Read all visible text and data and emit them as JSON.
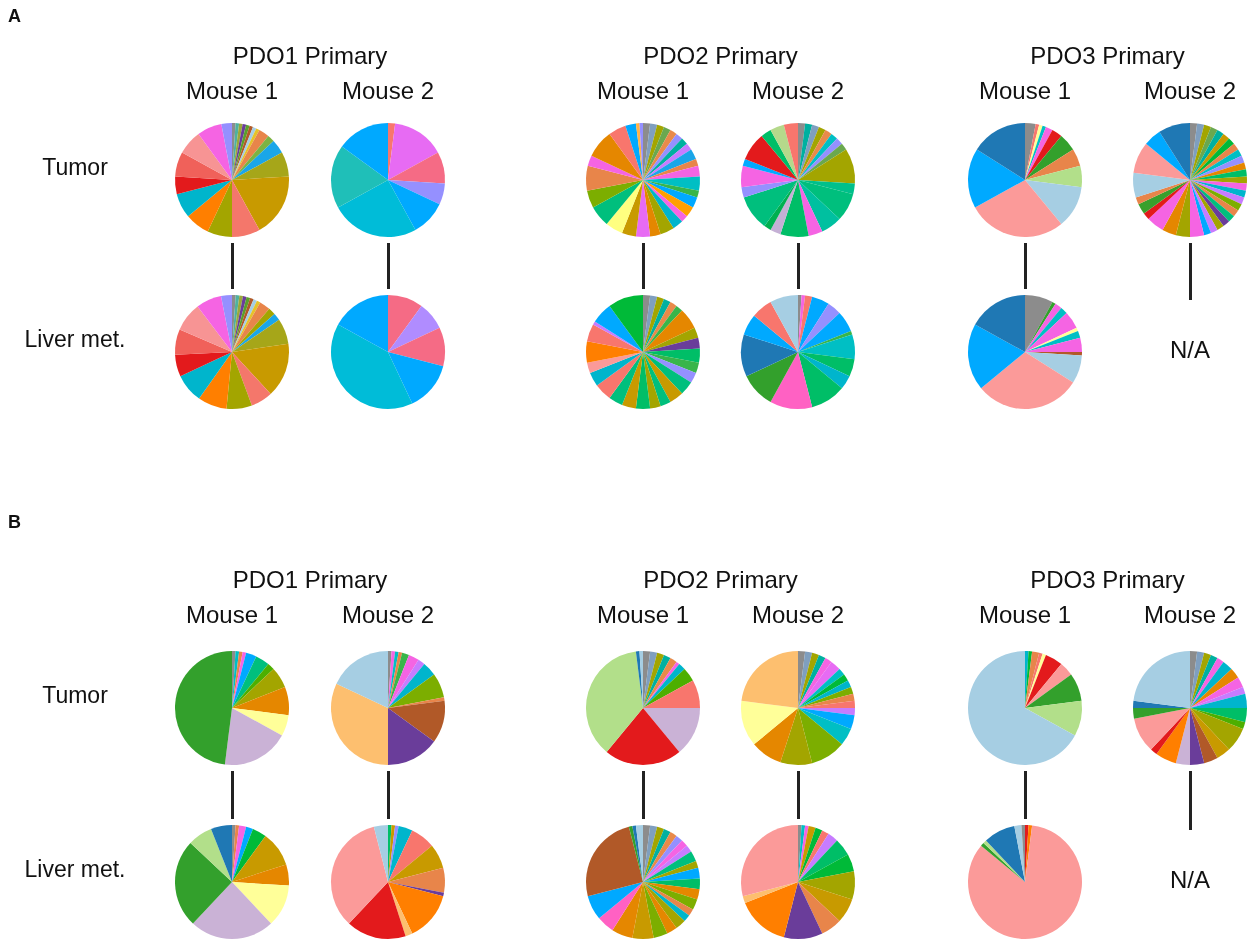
{
  "chart_data": [
    {
      "type": "pie",
      "title": "PDO1 Primary",
      "subtitle": "Mouse 1",
      "ylabel": "Tumor",
      "annotations": [
        "A"
      ],
      "values": [
        1,
        1,
        1,
        1,
        1,
        1,
        1,
        1,
        3,
        2,
        4,
        7,
        18,
        8,
        7,
        7,
        7,
        5,
        7,
        7,
        7,
        3
      ],
      "colors": [
        "#8c8c8c",
        "#4fb0a0",
        "#9aa83a",
        "#6a3d9a",
        "#5aa02c",
        "#b15928",
        "#a6cee3",
        "#e6c229",
        "#e8854a",
        "#7cb342",
        "#1aa6e8",
        "#a6a619",
        "#c89a00",
        "#f4776b",
        "#a3a500",
        "#ff7f00",
        "#00b5cc",
        "#e31a1c",
        "#f0615a",
        "#f79494",
        "#f564e3",
        "#9590ff"
      ]
    },
    {
      "type": "pie",
      "subtitle": "Mouse 2",
      "values": [
        2,
        15,
        9,
        6,
        10,
        25,
        18,
        15
      ],
      "colors": [
        "#f8766d",
        "#e76bf3",
        "#f56b85",
        "#9590ff",
        "#00a9ff",
        "#00bcd8",
        "#1fbfb8",
        "#00a9ff"
      ]
    },
    {
      "type": "pie",
      "title": "PDO2 Primary",
      "subtitle": "Mouse 1",
      "values": [
        2,
        2,
        2,
        2,
        2,
        2,
        2,
        2,
        3,
        2,
        3,
        4,
        2,
        3,
        3,
        2,
        3,
        4,
        3,
        4,
        4,
        5,
        6,
        5,
        7,
        3,
        8,
        5,
        3,
        1,
        1
      ],
      "colors": [
        "#8c8c8c",
        "#7f9fbf",
        "#a3a500",
        "#6aa84f",
        "#e88a4a",
        "#9590ff",
        "#00b0a0",
        "#c77cff",
        "#1aa6e8",
        "#e8854a",
        "#f564e3",
        "#00bfc4",
        "#39b54a",
        "#00a9ff",
        "#ff9f00",
        "#f564e3",
        "#00b5cc",
        "#a3a500",
        "#e58700",
        "#e76bf3",
        "#c89a00",
        "#ffff80",
        "#00bf7d",
        "#7cae00",
        "#e8854a",
        "#f564e3",
        "#e58700",
        "#f8766d",
        "#00a9ff",
        "#ffb347",
        "#9590ff"
      ]
    },
    {
      "type": "pie",
      "subtitle": "Mouse 2",
      "values": [
        2,
        2,
        2,
        2,
        2,
        2,
        2,
        2,
        10,
        3,
        8,
        6,
        4,
        8,
        3,
        2,
        10,
        3,
        6,
        2,
        8,
        3,
        4,
        4
      ],
      "colors": [
        "#8c8c8c",
        "#00b0a0",
        "#7f9fbf",
        "#a3a500",
        "#e88a4a",
        "#00bfc4",
        "#9590ff",
        "#6aa84f",
        "#a3a500",
        "#00c08b",
        "#00bf7d",
        "#00c0a0",
        "#f564e3",
        "#00be67",
        "#c5b0d5",
        "#00b050",
        "#00bf7d",
        "#9590ff",
        "#f564e3",
        "#00a9ff",
        "#e31a1c",
        "#00be67",
        "#b5d98b",
        "#f8766d"
      ]
    },
    {
      "type": "pie",
      "title": "PDO3 Primary",
      "subtitle": "Mouse 1",
      "values": [
        3,
        1,
        1,
        1,
        2,
        3,
        5,
        5,
        6,
        12,
        28,
        17,
        16
      ],
      "colors": [
        "#8c8c8c",
        "#f8766d",
        "#ffff99",
        "#00bfc4",
        "#f564e3",
        "#e31a1c",
        "#33a02c",
        "#e8854a",
        "#b2df8a",
        "#a6cee3",
        "#fb9a99",
        "#00a9ff",
        "#1f78b4"
      ]
    },
    {
      "type": "pie",
      "subtitle": "Mouse 2",
      "values": [
        2,
        2,
        2,
        2,
        2,
        2,
        2,
        2,
        2,
        2,
        2,
        2,
        2,
        2,
        2,
        2,
        2,
        2,
        2,
        2,
        2,
        2,
        2,
        4,
        4,
        4,
        5,
        2,
        3,
        2,
        7,
        9,
        5,
        9
      ],
      "colors": [
        "#8c8c8c",
        "#7f9fbf",
        "#a3a500",
        "#6aa84f",
        "#00b0a0",
        "#c89a00",
        "#00ba38",
        "#e8854a",
        "#00bfc4",
        "#9590ff",
        "#e58700",
        "#00be67",
        "#a3a500",
        "#f564e3",
        "#00b5cc",
        "#c77cff",
        "#7cae00",
        "#e8854a",
        "#00bf7d",
        "#6a3d9a",
        "#a3a500",
        "#c77cff",
        "#00a9ff",
        "#f564e3",
        "#a3a500",
        "#e58700",
        "#f564e3",
        "#e31a1c",
        "#39a02c",
        "#e8854a",
        "#a6cee3",
        "#fb9a99",
        "#00a9ff",
        "#1f78b4"
      ]
    },
    {
      "type": "pie",
      "ylabel": "Liver met.",
      "values": [
        1,
        1,
        1,
        1,
        1,
        1,
        1,
        1,
        3,
        2,
        2,
        7,
        15,
        6,
        7,
        8,
        8,
        6,
        7,
        8,
        7,
        3
      ],
      "colors": [
        "#8c8c8c",
        "#4fb0a0",
        "#9aa83a",
        "#6a3d9a",
        "#5aa02c",
        "#b15928",
        "#a6cee3",
        "#e6c229",
        "#e8854a",
        "#a3a500",
        "#1aa6e8",
        "#a6a619",
        "#c89a00",
        "#f4776b",
        "#a3a500",
        "#ff7f00",
        "#00b5cc",
        "#e31a1c",
        "#f0615a",
        "#f79494",
        "#f564e3",
        "#9590ff"
      ]
    },
    {
      "type": "pie",
      "values": [
        10,
        8,
        11,
        14,
        40,
        17
      ],
      "colors": [
        "#f56b85",
        "#b08cff",
        "#f56b85",
        "#00a9ff",
        "#00bcd8",
        "#00a9ff"
      ]
    },
    {
      "type": "pie",
      "values": [
        2,
        2,
        2,
        2,
        2,
        2,
        6,
        3,
        3,
        4,
        3,
        3,
        4,
        4,
        3,
        3,
        4,
        4,
        4,
        5,
        4,
        3,
        6,
        5,
        1,
        6,
        10
      ],
      "colors": [
        "#8c8c8c",
        "#7f9fbf",
        "#a3a500",
        "#00b0a0",
        "#e88a4a",
        "#39b54a",
        "#e58700",
        "#a3a500",
        "#6a3d9a",
        "#00be67",
        "#39b54a",
        "#9590ff",
        "#00bf7d",
        "#c89a00",
        "#00bf7d",
        "#a3a500",
        "#00be67",
        "#c89a00",
        "#00bf7d",
        "#f8766d",
        "#00b5cc",
        "#fb9a99",
        "#ff7f00",
        "#f8766d",
        "#c77cff",
        "#00a9ff",
        "#00ba38"
      ]
    },
    {
      "type": "pie",
      "values": [
        1,
        1,
        2,
        5,
        4,
        6,
        1,
        7,
        5,
        4,
        10,
        12,
        10,
        12,
        6,
        6,
        8
      ],
      "colors": [
        "#8c8c8c",
        "#f564e3",
        "#f8766d",
        "#00a9ff",
        "#9590ff",
        "#00a9ff",
        "#39b54a",
        "#00bfc4",
        "#00be67",
        "#00b5cc",
        "#00be67",
        "#ff61c3",
        "#33a02c",
        "#1f78b4",
        "#00a9ff",
        "#f8766d",
        "#a6cee3"
      ]
    },
    {
      "type": "pie",
      "values": [
        8,
        1,
        2,
        2,
        5,
        1,
        2,
        4,
        1,
        8,
        30,
        19,
        17
      ],
      "colors": [
        "#8c8c8c",
        "#33a02c",
        "#f564e3",
        "#00bfc4",
        "#f564e3",
        "#ffff99",
        "#00bfc4",
        "#f564e3",
        "#b15928",
        "#a6cee3",
        "#fb9a99",
        "#00a9ff",
        "#1f78b4"
      ]
    },
    {
      "type": "other",
      "annotations": [
        "N/A"
      ]
    },
    {
      "type": "pie",
      "title": "PDO1 Primary",
      "subtitle": "Mouse 1",
      "ylabel": "Tumor",
      "annotations": [
        "B"
      ],
      "values": [
        1,
        1,
        1,
        1,
        3,
        4,
        2,
        6,
        8,
        6,
        19,
        48
      ],
      "colors": [
        "#8c8c8c",
        "#00bfc4",
        "#e8854a",
        "#f564e3",
        "#00a9ff",
        "#00bf7d",
        "#4daf00",
        "#a3a500",
        "#e58700",
        "#ffff99",
        "#cab2d6",
        "#33a02c"
      ]
    },
    {
      "type": "pie",
      "subtitle": "Mouse 2",
      "values": [
        1,
        1,
        1,
        1,
        2,
        3,
        2,
        4,
        7,
        1,
        12,
        15,
        32,
        18
      ],
      "colors": [
        "#8c8c8c",
        "#f564e3",
        "#00bfc4",
        "#e8854a",
        "#39b54a",
        "#f564e3",
        "#c77cff",
        "#00b5cc",
        "#7cae00",
        "#e8854a",
        "#b15928",
        "#6a3d9a",
        "#fdbf6f",
        "#a6cee3"
      ]
    },
    {
      "type": "pie",
      "title": "PDO2 Primary",
      "subtitle": "Mouse 1",
      "values": [
        2,
        2,
        2,
        2,
        2,
        1,
        2,
        4,
        8,
        14,
        22,
        37,
        1,
        1
      ],
      "colors": [
        "#8c8c8c",
        "#7f9fbf",
        "#a3a500",
        "#00b0a0",
        "#e88a4a",
        "#f564e3",
        "#00b5cc",
        "#4daf00",
        "#f8766d",
        "#cab2d6",
        "#e31a1c",
        "#b2df8a",
        "#1f78b4",
        "#a6cee3"
      ]
    },
    {
      "type": "pie",
      "subtitle": "Mouse 2",
      "values": [
        2,
        2,
        2,
        2,
        2,
        3,
        2,
        2,
        2,
        2,
        2,
        2,
        2,
        4,
        5,
        10,
        9,
        9,
        13,
        23
      ],
      "colors": [
        "#8c8c8c",
        "#7f9fbf",
        "#a3a500",
        "#00b0a0",
        "#f564e3",
        "#e76bf3",
        "#00bfc4",
        "#00ba38",
        "#00b5cc",
        "#7cae00",
        "#e8854a",
        "#f8766d",
        "#c77cff",
        "#00a9ff",
        "#00bfc4",
        "#7cae00",
        "#a3a500",
        "#e58700",
        "#ffff99",
        "#fdbf6f"
      ]
    },
    {
      "type": "pie",
      "title": "PDO3 Primary",
      "subtitle": "Mouse 1",
      "values": [
        1,
        1,
        2,
        1,
        1,
        5,
        4,
        8,
        10,
        67
      ],
      "colors": [
        "#00b5cc",
        "#00ba38",
        "#e8854a",
        "#f8766d",
        "#ffff99",
        "#e31a1c",
        "#fb9a99",
        "#33a02c",
        "#b2df8a",
        "#a6cee3"
      ]
    },
    {
      "type": "pie",
      "subtitle": "Mouse 2",
      "values": [
        2,
        2,
        2,
        2,
        2,
        3,
        3,
        3,
        2,
        4,
        4,
        2,
        7,
        4,
        4,
        4,
        4,
        6,
        2,
        10,
        3,
        2,
        23
      ],
      "colors": [
        "#8c8c8c",
        "#7f9fbf",
        "#a3a500",
        "#00b0a0",
        "#f564e3",
        "#00b5cc",
        "#e58700",
        "#f564e3",
        "#c77cff",
        "#00b5cc",
        "#00be67",
        "#4daf00",
        "#a3a500",
        "#c89a00",
        "#b15928",
        "#6a3d9a",
        "#cab2d6",
        "#ff7f00",
        "#e31a1c",
        "#fb9a99",
        "#33a02c",
        "#1f78b4",
        "#a6cee3"
      ]
    },
    {
      "type": "pie",
      "ylabel": "Liver met.",
      "values": [
        1,
        1,
        2,
        2,
        4,
        10,
        6,
        12,
        24,
        25,
        7,
        6
      ],
      "colors": [
        "#8c8c8c",
        "#e8854a",
        "#f564e3",
        "#00a9ff",
        "#00ba38",
        "#c89a00",
        "#e58700",
        "#ffff99",
        "#cab2d6",
        "#33a02c",
        "#b2df8a",
        "#1f78b4"
      ]
    },
    {
      "type": "pie",
      "values": [
        1,
        1,
        1,
        4,
        7,
        7,
        7,
        1,
        14,
        2,
        17,
        34,
        4
      ],
      "colors": [
        "#00be67",
        "#c89a00",
        "#9590ff",
        "#00b5cc",
        "#f8766d",
        "#c89a00",
        "#e8854a",
        "#6a3d9a",
        "#ff7f00",
        "#fdbf6f",
        "#e31a1c",
        "#fb9a99",
        "#a6cee3"
      ]
    },
    {
      "type": "pie",
      "values": [
        2,
        2,
        2,
        2,
        2,
        2,
        2,
        2,
        3,
        2,
        3,
        3,
        3,
        3,
        2,
        2,
        3,
        3,
        4,
        6,
        6,
        5,
        7,
        25,
        1,
        1,
        2
      ],
      "colors": [
        "#8c8c8c",
        "#7f9fbf",
        "#a3a500",
        "#00b0a0",
        "#e88a4a",
        "#9590ff",
        "#f564e3",
        "#c77cff",
        "#00bf7d",
        "#a3a500",
        "#00a9ff",
        "#00be67",
        "#e58700",
        "#7cae00",
        "#e8854a",
        "#00b5cc",
        "#a3a500",
        "#e58700",
        "#7cae00",
        "#c89a00",
        "#e58700",
        "#ff61c3",
        "#00a9ff",
        "#b15928",
        "#33a02c",
        "#1f78b4",
        "#a6cee3"
      ]
    },
    {
      "type": "pie",
      "values": [
        1,
        1,
        1,
        2,
        2,
        2,
        3,
        5,
        5,
        8,
        7,
        6,
        11,
        15,
        2,
        29
      ],
      "colors": [
        "#8c8c8c",
        "#00bfc4",
        "#f564e3",
        "#c89a00",
        "#00ba38",
        "#f8766d",
        "#c77cff",
        "#00be67",
        "#00ba38",
        "#a3a500",
        "#c89a00",
        "#e8854a",
        "#6a3d9a",
        "#ff7f00",
        "#fdbf6f",
        "#fb9a99"
      ]
    },
    {
      "type": "pie",
      "values": [
        1,
        1,
        84,
        1,
        1,
        9,
        2,
        1
      ],
      "colors": [
        "#e31a1c",
        "#ff7f00",
        "#fb9a99",
        "#33a02c",
        "#b2df8a",
        "#1f78b4",
        "#a6cee3",
        "#8c8c8c"
      ]
    },
    {
      "type": "other",
      "annotations": [
        "N/A"
      ]
    }
  ]
}
